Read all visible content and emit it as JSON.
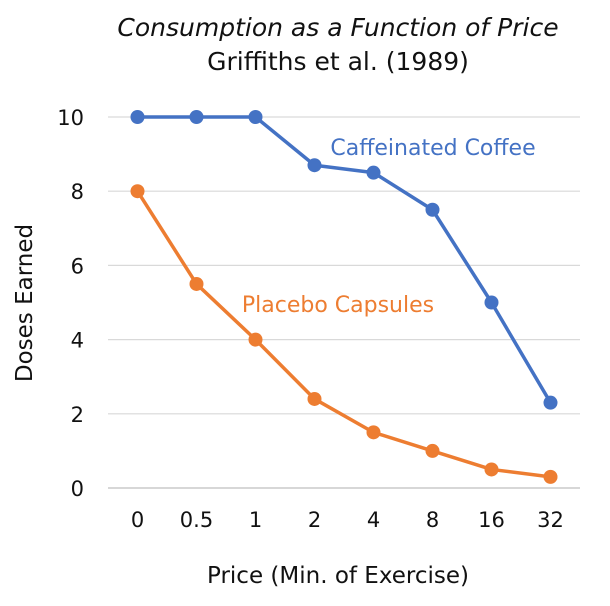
{
  "chart_data": {
    "type": "line",
    "title": "Consumption as a Function of Price",
    "subtitle": "Griffiths et al. (1989)",
    "xlabel": "Price (Min. of Exercise)",
    "ylabel": "Doses Earned",
    "categories": [
      "0",
      "0.5",
      "1",
      "2",
      "4",
      "8",
      "16",
      "32"
    ],
    "ylim": [
      0,
      10
    ],
    "yticks": [
      0,
      2,
      4,
      6,
      8,
      10
    ],
    "grid": true,
    "series": [
      {
        "name": "Caffeinated Coffee",
        "color": "#4472C4",
        "values": [
          10,
          10,
          10,
          8.7,
          8.5,
          7.5,
          5.0,
          2.3
        ]
      },
      {
        "name": "Placebo Capsules",
        "color": "#ED7D31",
        "values": [
          8.0,
          5.5,
          4.0,
          2.4,
          1.5,
          1.0,
          0.5,
          0.3
        ]
      }
    ]
  }
}
